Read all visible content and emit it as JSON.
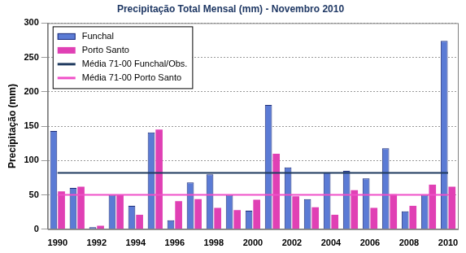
{
  "chart_data": {
    "type": "bar",
    "title": "Precipitação Total Mensal (mm) - Novembro 2010",
    "y_label": "Precipitação (mm)",
    "categories": [
      "1990",
      null,
      "1992",
      null,
      "1994",
      null,
      "1996",
      null,
      "1998",
      null,
      "2000",
      null,
      "2002",
      null,
      "2004",
      null,
      "2006",
      null,
      "2008",
      null,
      "2010"
    ],
    "series": [
      {
        "name": "Funchal",
        "color": "#5b7bd5",
        "values": [
          143,
          60,
          3,
          50,
          34,
          141,
          13,
          68,
          80,
          50,
          27,
          181,
          90,
          44,
          83,
          85,
          74,
          118,
          26,
          50,
          274
        ]
      },
      {
        "name": "Porto Santo",
        "color": "#e040b4",
        "values": [
          55,
          62,
          5,
          50,
          21,
          145,
          41,
          44,
          31,
          28,
          43,
          110,
          48,
          32,
          21,
          57,
          31,
          51,
          34,
          65,
          62
        ]
      },
      {
        "name": "Média 71-00 Funchal/Obs.",
        "type": "line",
        "color": "#1f3a5f",
        "values": [
          82,
          82,
          82,
          82,
          82,
          82,
          82,
          82,
          82,
          82,
          82,
          82,
          82,
          82,
          82,
          82,
          82,
          82,
          82,
          82,
          82
        ]
      },
      {
        "name": "Média 71-00 Porto Santo",
        "type": "line",
        "color": "#f050c8",
        "values": [
          50,
          50,
          50,
          50,
          50,
          50,
          50,
          50,
          50,
          50,
          50,
          50,
          50,
          50,
          50,
          50,
          50,
          50,
          50,
          50,
          50
        ]
      }
    ],
    "ylim": [
      0,
      300
    ],
    "yticks": [
      0,
      50,
      100,
      150,
      200,
      250,
      300
    ],
    "grid": true,
    "legend": "upper left"
  }
}
